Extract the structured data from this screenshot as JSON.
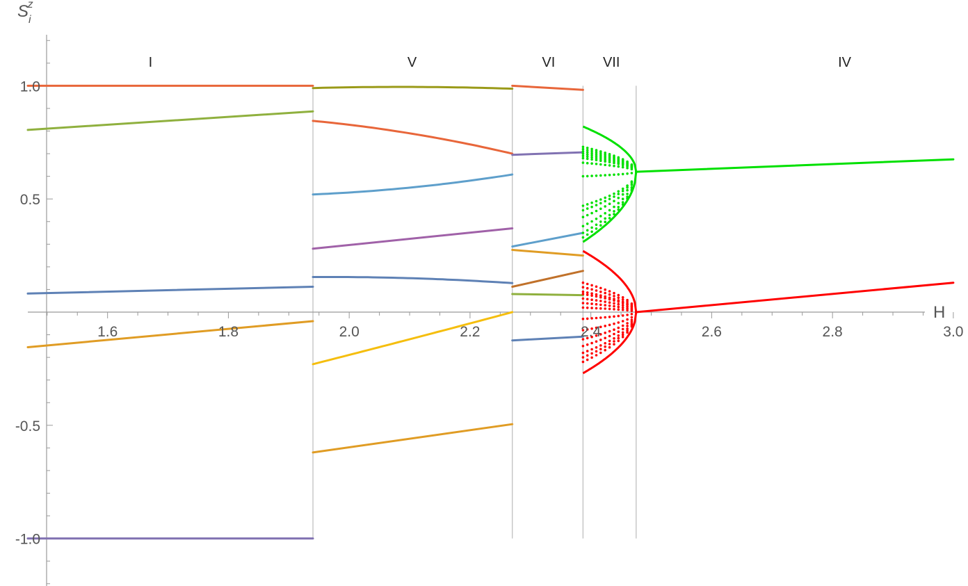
{
  "chart_data": {
    "type": "line",
    "xlabel": "H",
    "ylabel": {
      "base": "S",
      "sub": "i",
      "sup": "z"
    },
    "xlim": [
      1.468,
      3.03
    ],
    "ylim": [
      -1.2,
      1.2
    ],
    "x_ticks": [
      {
        "value": 1.6,
        "label": "1.6"
      },
      {
        "value": 1.8,
        "label": "1.8"
      },
      {
        "value": 2.0,
        "label": "2.0"
      },
      {
        "value": 2.2,
        "label": "2.2"
      },
      {
        "value": 2.4,
        "label": "2.4"
      },
      {
        "value": 2.6,
        "label": "2.6"
      },
      {
        "value": 2.8,
        "label": "2.8"
      },
      {
        "value": 3.0,
        "label": "3.0"
      }
    ],
    "y_ticks": [
      {
        "value": 1.0,
        "label": "1.0"
      },
      {
        "value": 0.5,
        "label": "0.5"
      },
      {
        "value": -0.5,
        "label": "-0.5"
      },
      {
        "value": -1.0,
        "label": "-1.0"
      }
    ],
    "boundaries": [
      1.94,
      2.27,
      2.387,
      2.475
    ],
    "region_labels": [
      {
        "text": "I",
        "x": 1.671
      },
      {
        "text": "V",
        "x": 2.104
      },
      {
        "text": "VI",
        "x": 2.33
      },
      {
        "text": "VII",
        "x": 2.434
      },
      {
        "text": "IV",
        "x": 2.82
      }
    ],
    "series": [
      {
        "color": "#E8663A",
        "x": [
          1.468,
          1.94
        ],
        "y": [
          1.0,
          1.0
        ]
      },
      {
        "color": "#8FB03E",
        "x": [
          1.468,
          1.94
        ],
        "y": [
          0.805,
          0.887
        ]
      },
      {
        "color": "#5E81B5",
        "x": [
          1.468,
          1.94
        ],
        "y": [
          0.082,
          0.112
        ]
      },
      {
        "color": "#E09C24",
        "x": [
          1.468,
          1.94
        ],
        "y": [
          -0.155,
          -0.04
        ]
      },
      {
        "color": "#8172B2",
        "x": [
          1.468,
          1.94
        ],
        "y": [
          -1.0,
          -1.0
        ]
      },
      {
        "color": "#9A9A18",
        "x": [
          1.94,
          2.1,
          2.27
        ],
        "y": [
          0.99,
          0.995,
          0.987
        ]
      },
      {
        "color": "#E8663A",
        "x": [
          1.94,
          2.1,
          2.27
        ],
        "y": [
          0.845,
          0.79,
          0.7
        ]
      },
      {
        "color": "#5E9FCB",
        "x": [
          1.94,
          2.1,
          2.27
        ],
        "y": [
          0.52,
          0.55,
          0.608
        ]
      },
      {
        "color": "#A061A8",
        "x": [
          1.94,
          2.27
        ],
        "y": [
          0.28,
          0.37
        ]
      },
      {
        "color": "#5E81B5",
        "x": [
          1.94,
          2.1,
          2.27
        ],
        "y": [
          0.155,
          0.15,
          0.128
        ]
      },
      {
        "color": "#F5BE0E",
        "x": [
          1.94,
          2.1,
          2.27
        ],
        "y": [
          -0.23,
          -0.12,
          0.0
        ]
      },
      {
        "color": "#E09C24",
        "x": [
          1.94,
          2.27
        ],
        "y": [
          -0.62,
          -0.495
        ]
      },
      {
        "color": "#E8663A",
        "x": [
          2.27,
          2.387
        ],
        "y": [
          1.0,
          0.982
        ]
      },
      {
        "color": "#8172B2",
        "x": [
          2.27,
          2.387
        ],
        "y": [
          0.695,
          0.706
        ]
      },
      {
        "color": "#5E9FCB",
        "x": [
          2.27,
          2.387
        ],
        "y": [
          0.29,
          0.35
        ]
      },
      {
        "color": "#E09C24",
        "x": [
          2.27,
          2.387
        ],
        "y": [
          0.275,
          0.25
        ]
      },
      {
        "color": "#C0712A",
        "x": [
          2.27,
          2.387
        ],
        "y": [
          0.112,
          0.182
        ]
      },
      {
        "color": "#8FB03E",
        "x": [
          2.27,
          2.387
        ],
        "y": [
          0.08,
          0.075
        ]
      },
      {
        "color": "#5E81B5",
        "x": [
          2.27,
          2.387
        ],
        "y": [
          -0.125,
          -0.108
        ]
      },
      {
        "color": "#00E000",
        "x": [
          2.475,
          3.0
        ],
        "y": [
          0.62,
          0.675
        ]
      },
      {
        "color": "#FF0000",
        "x": [
          2.475,
          3.0
        ],
        "y": [
          0.0,
          0.13
        ]
      }
    ],
    "fans": [
      {
        "color": "#00E000",
        "x_start": 2.387,
        "x_end": 2.475,
        "y_end": 0.62,
        "start_values": [
          0.82,
          0.73,
          0.72,
          0.71,
          0.7,
          0.69,
          0.68,
          0.66,
          0.6,
          0.47,
          0.45,
          0.42,
          0.38,
          0.35,
          0.33,
          0.31
        ],
        "solid_values": [
          0.82,
          0.31
        ]
      },
      {
        "color": "#FF0000",
        "x_start": 2.387,
        "x_end": 2.475,
        "y_end": 0.0,
        "start_values": [
          0.27,
          0.13,
          0.11,
          0.09,
          0.08,
          0.06,
          0.04,
          0.02,
          -0.03,
          -0.08,
          -0.12,
          -0.15,
          -0.18,
          -0.2,
          -0.22,
          -0.27
        ],
        "solid_values": [
          0.27,
          -0.27
        ]
      }
    ]
  }
}
